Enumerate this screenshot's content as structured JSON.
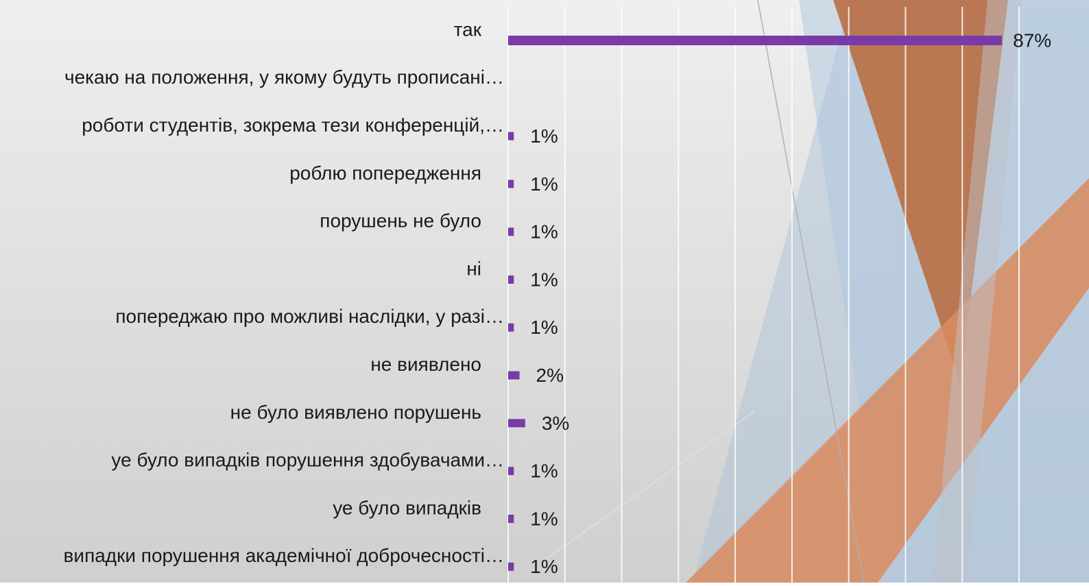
{
  "chart_data": {
    "type": "bar",
    "orientation": "horizontal",
    "categories": [
      "так",
      "чекаю на положення, у якому будуть прописані…",
      "роботи студентів, зокрема тези конференцій,…",
      "роблю попередження",
      "порушень не було",
      "ні",
      "попереджаю про можливі наслідки, у разі…",
      "не виявлено",
      "не було виявлено порушень",
      "уе було випадків порушення здобувачами…",
      "уе було випадків",
      "випадки порушення академічної доброчесності…"
    ],
    "values": [
      87,
      null,
      1,
      1,
      1,
      1,
      1,
      2,
      3,
      1,
      1,
      1
    ],
    "value_labels": [
      "87%",
      null,
      "1%",
      "1%",
      "1%",
      "1%",
      "1%",
      "2%",
      "3%",
      "1%",
      "1%",
      "1%"
    ],
    "color": "#7a3aa8",
    "xlim": [
      0,
      90
    ],
    "xticks": [
      0,
      10,
      20,
      30,
      40,
      50,
      60,
      70,
      80,
      90
    ],
    "grid": true
  }
}
